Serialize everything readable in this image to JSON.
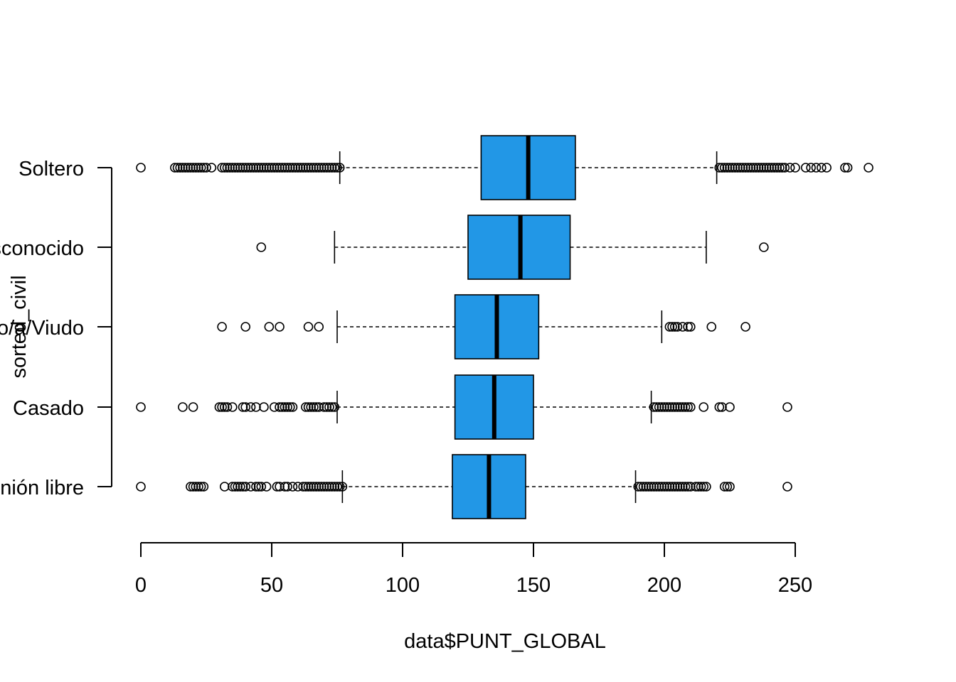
{
  "chart_data": {
    "type": "boxplot",
    "orientation": "horizontal",
    "title": "",
    "xlabel": "data$PUNT_GLOBAL",
    "ylabel": "sorted_civil",
    "xlim": [
      0,
      280
    ],
    "xticks": [
      0,
      50,
      100,
      150,
      200,
      250
    ],
    "fill_color": "#2297e6",
    "groups": [
      {
        "label": "Unión libre",
        "stats": {
          "whisker_low": 77,
          "q1": 119,
          "median": 133,
          "q3": 147,
          "whisker_high": 189
        },
        "outliers": [
          0,
          19,
          20,
          21,
          22,
          23,
          24,
          32,
          35,
          36,
          37,
          38,
          39,
          40,
          42,
          44,
          45,
          46,
          48,
          52,
          53,
          55,
          56,
          58,
          60,
          62,
          63,
          64,
          65,
          66,
          67,
          68,
          69,
          70,
          71,
          72,
          73,
          74,
          75,
          76,
          77,
          190,
          191,
          192,
          193,
          194,
          195,
          196,
          197,
          198,
          199,
          200,
          201,
          202,
          203,
          204,
          205,
          206,
          207,
          208,
          209,
          210,
          212,
          213,
          214,
          215,
          216,
          223,
          224,
          225,
          247
        ]
      },
      {
        "label": "Casado",
        "stats": {
          "whisker_low": 75,
          "q1": 120,
          "median": 135,
          "q3": 150,
          "whisker_high": 195
        },
        "outliers": [
          0,
          16,
          20,
          30,
          31,
          32,
          33,
          35,
          39,
          40,
          42,
          44,
          47,
          51,
          53,
          54,
          55,
          56,
          57,
          58,
          63,
          64,
          65,
          66,
          67,
          68,
          70,
          71,
          72,
          73,
          74,
          196,
          197,
          198,
          199,
          200,
          201,
          202,
          203,
          204,
          205,
          206,
          207,
          208,
          209,
          210,
          215,
          221,
          222,
          225,
          247
        ]
      },
      {
        "label": "Separado/a/Divorciado/a/Viudo",
        "stats": {
          "whisker_low": 75,
          "q1": 120,
          "median": 136,
          "q3": 152,
          "whisker_high": 199
        },
        "outliers": [
          31,
          40,
          49,
          53,
          64,
          68,
          202,
          203,
          204,
          205,
          207,
          209,
          210,
          218,
          231
        ]
      },
      {
        "label": "Desconocido",
        "stats": {
          "whisker_low": 74,
          "q1": 125,
          "median": 145,
          "q3": 164,
          "whisker_high": 216
        },
        "outliers": [
          46,
          238
        ]
      },
      {
        "label": "Soltero",
        "stats": {
          "whisker_low": 76,
          "q1": 130,
          "median": 148,
          "q3": 166,
          "whisker_high": 220
        },
        "outliers": [
          0,
          13,
          14,
          15,
          16,
          17,
          18,
          19,
          20,
          21,
          22,
          23,
          24,
          25,
          27,
          31,
          32,
          33,
          34,
          35,
          36,
          37,
          38,
          39,
          40,
          41,
          42,
          43,
          44,
          45,
          46,
          47,
          48,
          49,
          50,
          51,
          52,
          53,
          54,
          55,
          56,
          57,
          58,
          59,
          60,
          61,
          62,
          63,
          64,
          65,
          66,
          67,
          68,
          69,
          70,
          71,
          72,
          73,
          74,
          75,
          76,
          221,
          222,
          223,
          224,
          225,
          226,
          227,
          228,
          229,
          230,
          231,
          232,
          233,
          234,
          235,
          236,
          237,
          238,
          239,
          240,
          241,
          242,
          243,
          244,
          245,
          246,
          248,
          250,
          254,
          256,
          258,
          260,
          262,
          269,
          270,
          278
        ]
      }
    ]
  }
}
